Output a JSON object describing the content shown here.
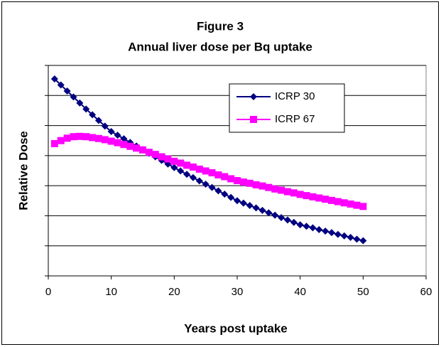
{
  "chart_data": {
    "type": "line",
    "title": "Figure 3",
    "subtitle": "Annual liver dose per Bq uptake",
    "x_label": "Years post uptake",
    "y_label": "Relative Dose",
    "x": [
      1,
      2,
      3,
      4,
      5,
      6,
      7,
      8,
      9,
      10,
      11,
      12,
      13,
      14,
      15,
      16,
      17,
      18,
      19,
      20,
      21,
      22,
      23,
      24,
      25,
      26,
      27,
      28,
      29,
      30,
      31,
      32,
      33,
      34,
      35,
      36,
      37,
      38,
      39,
      40,
      41,
      42,
      43,
      44,
      45,
      46,
      47,
      48,
      49,
      50
    ],
    "series": [
      {
        "name": "ICRP 30",
        "color": "#000080",
        "marker": "diamond",
        "values": [
          6.55,
          6.35,
          6.15,
          5.95,
          5.75,
          5.55,
          5.36,
          5.17,
          4.98,
          4.8,
          4.68,
          4.56,
          4.44,
          4.32,
          4.2,
          4.08,
          3.96,
          3.84,
          3.72,
          3.6,
          3.49,
          3.38,
          3.27,
          3.16,
          3.05,
          2.94,
          2.83,
          2.72,
          2.61,
          2.5,
          2.42,
          2.34,
          2.26,
          2.18,
          2.1,
          2.02,
          1.94,
          1.86,
          1.78,
          1.7,
          1.65,
          1.6,
          1.54,
          1.49,
          1.44,
          1.38,
          1.33,
          1.28,
          1.22,
          1.17
        ]
      },
      {
        "name": "ICRP 67",
        "color": "#ff00ff",
        "marker": "square",
        "values": [
          4.4,
          4.5,
          4.58,
          4.63,
          4.64,
          4.63,
          4.6,
          4.57,
          4.53,
          4.48,
          4.43,
          4.37,
          4.31,
          4.25,
          4.19,
          4.11,
          4.04,
          3.96,
          3.89,
          3.81,
          3.75,
          3.68,
          3.62,
          3.55,
          3.49,
          3.43,
          3.36,
          3.3,
          3.23,
          3.17,
          3.12,
          3.08,
          3.03,
          2.99,
          2.94,
          2.89,
          2.85,
          2.8,
          2.76,
          2.71,
          2.67,
          2.63,
          2.59,
          2.55,
          2.51,
          2.47,
          2.43,
          2.39,
          2.35,
          2.31
        ]
      }
    ],
    "xlim": [
      0,
      60
    ],
    "xticks": [
      0,
      10,
      20,
      30,
      40,
      50,
      60
    ],
    "ylim": [
      0,
      7
    ],
    "yticks": [
      0,
      1,
      2,
      3,
      4,
      5,
      6,
      7
    ],
    "grid": true,
    "legend": "upper right"
  }
}
